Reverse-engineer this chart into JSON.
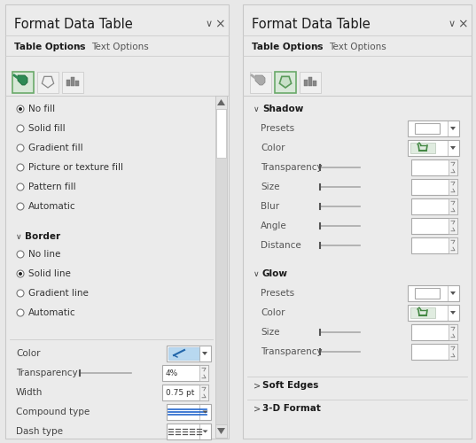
{
  "bg_color": "#e8e8e8",
  "panel_bg": "#ebebeb",
  "white": "#ffffff",
  "border_color": "#c8c8c8",
  "text_dark": "#1a1a1a",
  "text_mid": "#444444",
  "text_light": "#888888",
  "green_sel": "#5a9a5a",
  "green_bg": "#c8e0c8",
  "left_panel": {
    "title": "Format Data Table",
    "tab1_bold": "Table Options",
    "tab2": "Text Options",
    "fill_options": [
      "No fill",
      "Solid fill",
      "Gradient fill",
      "Picture or texture fill",
      "Pattern fill",
      "Automatic"
    ],
    "fill_selected": 0,
    "border_section": "Border",
    "border_options": [
      "No line",
      "Solid line",
      "Gradient line",
      "Automatic"
    ],
    "border_selected": 1,
    "color_label": "Color",
    "transparency_label": "Transparency",
    "transparency_value": "4%",
    "width_label": "Width",
    "width_value": "0.75 pt",
    "compound_label": "Compound type",
    "dash_label": "Dash type"
  },
  "right_panel": {
    "title": "Format Data Table",
    "tab1_bold": "Table Options",
    "tab2": "Text Options",
    "shadow_section": "Shadow",
    "shadow_items": [
      "Presets",
      "Color",
      "Transparency",
      "Size",
      "Blur",
      "Angle",
      "Distance"
    ],
    "glow_section": "Glow",
    "glow_items": [
      "Presets",
      "Color",
      "Size",
      "Transparency"
    ],
    "soft_edges": "Soft Edges",
    "three_d": "3-D Format"
  }
}
